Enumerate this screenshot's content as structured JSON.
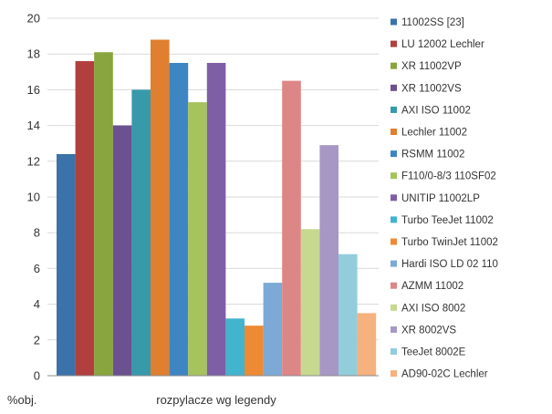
{
  "chart_data": {
    "type": "bar",
    "xlabel": "rozpylacze wg legendy",
    "ylabel": "%obj.",
    "ylim": [
      0,
      20
    ],
    "yticks": [
      0,
      2,
      4,
      6,
      8,
      10,
      12,
      14,
      16,
      18,
      20
    ],
    "grid": true,
    "legend_position": "right",
    "series": [
      {
        "name": "11002SS [23]",
        "value": 12.4,
        "color": "#3a72a9"
      },
      {
        "name": "LU 12002 Lechler",
        "value": 17.6,
        "color": "#b13f3d"
      },
      {
        "name": "XR 11002VP",
        "value": 18.1,
        "color": "#88a53e"
      },
      {
        "name": "XR 11002VS",
        "value": 14.0,
        "color": "#6b5190"
      },
      {
        "name": "AXI ISO 11002",
        "value": 16.0,
        "color": "#3899ab"
      },
      {
        "name": "Lechler 11002",
        "value": 18.8,
        "color": "#df7f2f"
      },
      {
        "name": "RSMM 11002",
        "value": 17.5,
        "color": "#3e85c4"
      },
      {
        "name": "F110/0-8/3 110SF02",
        "value": 15.3,
        "color": "#a6c35c"
      },
      {
        "name": "UNITIP 11002LP",
        "value": 17.5,
        "color": "#7e5fa6"
      },
      {
        "name": "Turbo TeeJet 11002",
        "value": 3.2,
        "color": "#42b4ce"
      },
      {
        "name": "Turbo TwinJet 11002",
        "value": 2.8,
        "color": "#ee8a34"
      },
      {
        "name": "Hardi ISO LD 02 110",
        "value": 5.2,
        "color": "#7da9d6"
      },
      {
        "name": "AZMM 11002",
        "value": 16.5,
        "color": "#dc8685"
      },
      {
        "name": "AXI ISO 8002",
        "value": 8.2,
        "color": "#c6d98f"
      },
      {
        "name": "XR 8002VS",
        "value": 12.9,
        "color": "#a697c5"
      },
      {
        "name": "TeeJet 8002E",
        "value": 6.8,
        "color": "#93cddc"
      },
      {
        "name": "AD90-02C Lechler",
        "value": 3.5,
        "color": "#f5b17e"
      }
    ]
  }
}
